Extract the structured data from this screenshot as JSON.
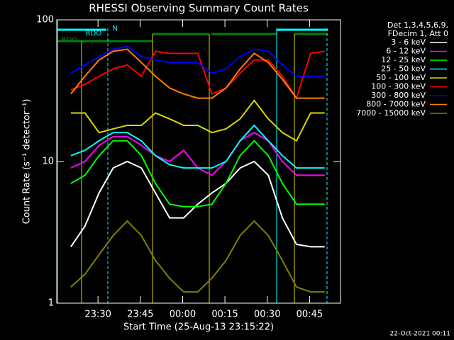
{
  "chart_data": {
    "type": "line",
    "title": "RHESSI Observing Summary Count Rates",
    "x_label": "Start Time (25-Aug-13 23:15:22)",
    "y_label": "Count Rate (s⁻¹ detector⁻¹)",
    "log_y": true,
    "xlim": [
      0,
      100.6
    ],
    "xticks": [
      {
        "value": 14.63,
        "label": "23:30"
      },
      {
        "value": 29.63,
        "label": "23:45"
      },
      {
        "value": 44.63,
        "label": "00:00"
      },
      {
        "value": 59.63,
        "label": "00:15"
      },
      {
        "value": 74.63,
        "label": "00:30"
      },
      {
        "value": 89.63,
        "label": "00:45"
      }
    ],
    "ylim": [
      1,
      100
    ],
    "yticks": [
      1,
      10,
      100
    ],
    "legend_header": [
      "Det 1,3,4,5,6,9,",
      "FDecim 1, Att 0"
    ],
    "annotations": [
      {
        "text": "N",
        "color": "#00ffff"
      },
      {
        "text": "RDO",
        "color": "#00ffff"
      },
      {
        "text": "RDO",
        "color": "#008000"
      }
    ],
    "timestamp": "22-Oct-2021 00:11",
    "x": [
      0,
      5,
      10,
      15,
      20,
      25,
      30,
      35,
      40,
      45,
      50,
      55,
      60,
      65,
      70,
      75,
      80,
      85,
      90,
      95,
      100
    ],
    "series": [
      {
        "name": "3 - 6 keV",
        "color": "#ffffff",
        "values": [
          null,
          2.5,
          3.5,
          6,
          9,
          10,
          9,
          6,
          4,
          4,
          5,
          6,
          7,
          9,
          10,
          8,
          4,
          2.6,
          2.5,
          2.5,
          null
        ]
      },
      {
        "name": "6 - 12 keV",
        "color": "#ff00ff",
        "values": [
          null,
          9,
          10,
          13,
          15,
          15,
          13,
          11,
          10,
          12,
          9,
          8,
          10,
          14,
          16,
          14,
          10,
          8,
          8,
          8,
          null
        ]
      },
      {
        "name": "12 - 25 keV",
        "color": "#00ff00",
        "values": [
          null,
          7,
          8,
          11,
          14,
          14,
          11,
          7,
          5,
          4.8,
          4.8,
          5,
          7,
          11,
          14,
          11,
          7,
          5,
          5,
          5,
          null
        ]
      },
      {
        "name": "25 - 50 keV",
        "color": "#00ffff",
        "values": [
          null,
          11,
          12,
          14,
          16,
          16,
          14,
          11,
          9.5,
          9,
          9,
          9,
          10,
          14,
          18,
          14,
          11,
          9,
          9,
          9,
          null
        ]
      },
      {
        "name": "50 - 100 keV",
        "color": "#d8d800",
        "values": [
          null,
          22,
          22,
          16,
          17,
          18,
          18,
          22,
          20,
          18,
          18,
          16,
          17,
          20,
          27,
          20,
          16,
          14,
          22,
          22,
          null
        ]
      },
      {
        "name": "100 - 300 keV",
        "color": "#ff0000",
        "values": [
          null,
          32,
          35,
          40,
          45,
          48,
          40,
          60,
          58,
          58,
          58,
          30,
          33,
          42,
          52,
          52,
          40,
          28,
          58,
          60,
          null
        ]
      },
      {
        "name": "300 - 800 keV",
        "color": "#0000ff",
        "values": [
          null,
          42,
          48,
          55,
          62,
          65,
          55,
          52,
          50,
          50,
          50,
          42,
          45,
          55,
          62,
          60,
          48,
          40,
          40,
          40,
          null
        ]
      },
      {
        "name": "800 - 7000 keV",
        "color": "#ff8000",
        "values": [
          null,
          30,
          40,
          52,
          60,
          62,
          50,
          40,
          33,
          30,
          28,
          28,
          33,
          45,
          58,
          50,
          38,
          28,
          28,
          28,
          null
        ]
      },
      {
        "name": "7000 - 15000 keV",
        "color": "#808000",
        "values": [
          null,
          1.3,
          1.6,
          2.2,
          3,
          3.8,
          3,
          2,
          1.5,
          1.2,
          1.2,
          1.5,
          2,
          3,
          3.8,
          3,
          2,
          1.3,
          1.2,
          1.2,
          null
        ]
      }
    ]
  }
}
